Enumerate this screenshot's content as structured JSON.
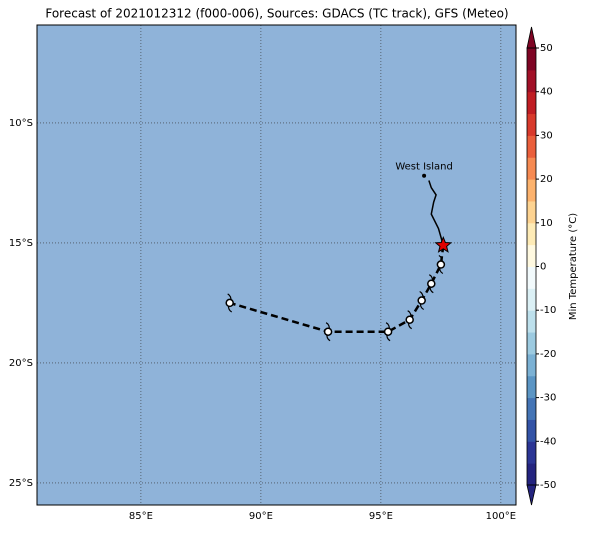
{
  "chart_data": {
    "type": "map",
    "title": "Forecast of 2021012312 (f000-006), Sources: GDACS (TC track), GFS (Meteo)",
    "xlim": [
      80.67,
      100.63
    ],
    "ylim": [
      -25.92,
      -5.92
    ],
    "xticks": [
      {
        "value": 85,
        "label": "85°E"
      },
      {
        "value": 90,
        "label": "90°E"
      },
      {
        "value": 95,
        "label": "95°E"
      },
      {
        "value": 100,
        "label": "100°E"
      }
    ],
    "yticks": [
      {
        "value": -10,
        "label": "10°S"
      },
      {
        "value": -15,
        "label": "15°S"
      },
      {
        "value": -20,
        "label": "20°S"
      },
      {
        "value": -25,
        "label": "25°S"
      }
    ],
    "ocean_color": "#8fb3d9",
    "grid": true,
    "past_track": {
      "lon": [
        97.6,
        97.4,
        97.1,
        97.2,
        97.3,
        97.1,
        97.0
      ],
      "lat": [
        -15.1,
        -14.4,
        -13.8,
        -13.3,
        -13.0,
        -12.7,
        -12.4
      ]
    },
    "current": {
      "lon": 97.6,
      "lat": -15.1,
      "color": "#e00000"
    },
    "forecast": {
      "lon": [
        97.5,
        97.1,
        96.7,
        96.2,
        95.3,
        92.8,
        88.7
      ],
      "lat": [
        -15.9,
        -16.7,
        -17.4,
        -18.2,
        -18.7,
        -18.7,
        -17.5
      ]
    },
    "place": {
      "name": "West Island",
      "lon": 96.8,
      "lat": -12.2
    },
    "colorbar": {
      "label": "Min Temperature (°C)",
      "lim": [
        -50,
        50
      ],
      "ticks": [
        50,
        40,
        30,
        20,
        10,
        0,
        -10,
        -20,
        -30,
        -40,
        -50
      ],
      "colors": [
        "#24247f",
        "#2b3594",
        "#3353a6",
        "#4474b5",
        "#5b95c4",
        "#7bb1d4",
        "#9ccae0",
        "#bde0ec",
        "#dbf0f5",
        "#f2fafc",
        "#fff9e0",
        "#feebb6",
        "#fdd391",
        "#fcb26d",
        "#f68a52",
        "#ea5f3c",
        "#d83a2c",
        "#c01e24",
        "#a11027",
        "#7e0524"
      ]
    }
  }
}
